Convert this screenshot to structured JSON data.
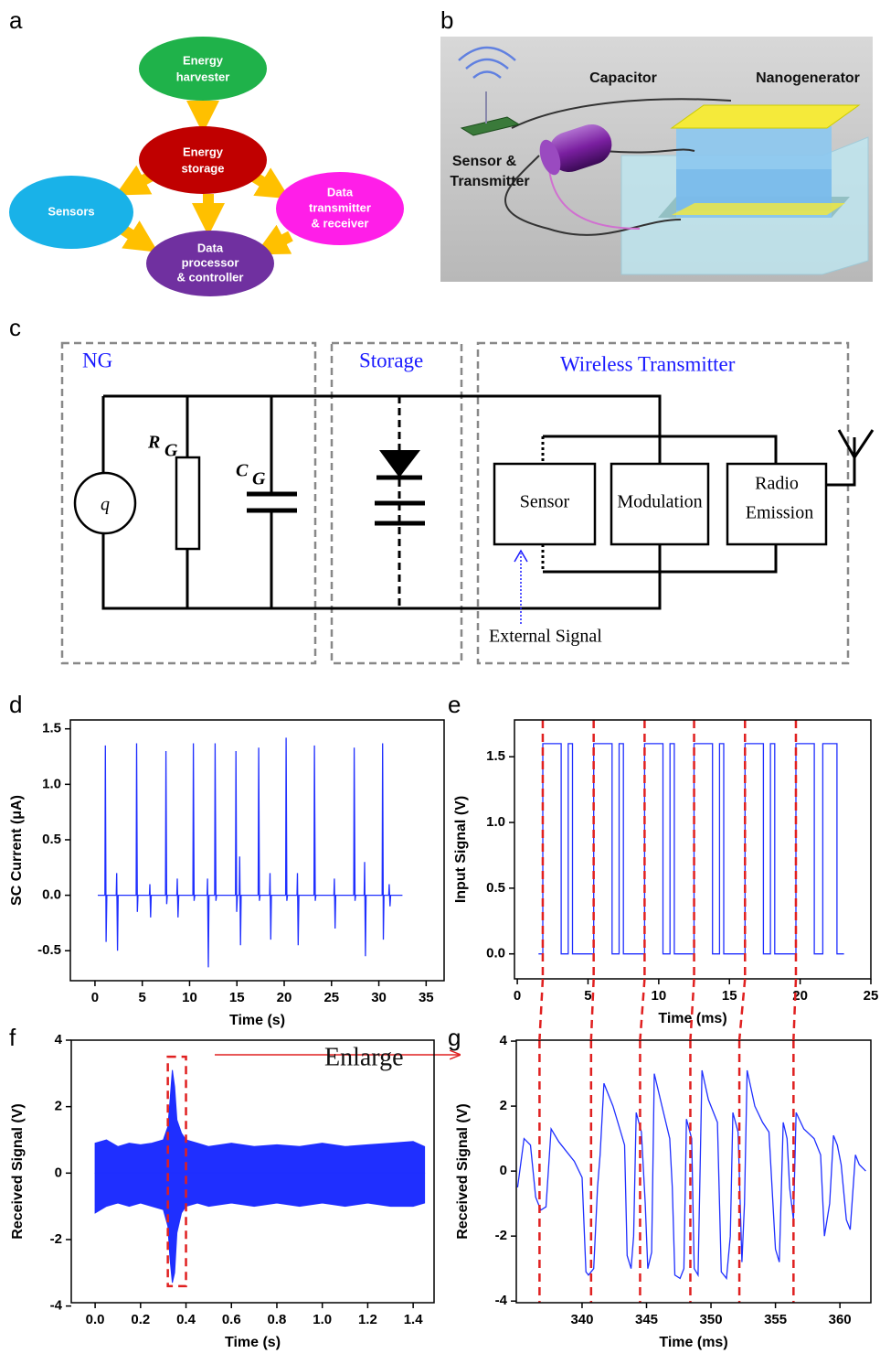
{
  "panels": [
    "a",
    "b",
    "c",
    "d",
    "e",
    "f",
    "g"
  ],
  "diagram": {
    "nodes": [
      {
        "label": [
          "Energy",
          "harvester"
        ]
      },
      {
        "label": [
          "Energy",
          "storage"
        ]
      },
      {
        "label": [
          "Sensors"
        ]
      },
      {
        "label": [
          "Data",
          "transmitter",
          "& receiver"
        ]
      },
      {
        "label": [
          "Data",
          "processor",
          "& controller"
        ]
      }
    ]
  },
  "illustration": {
    "labels": [
      "Capacitor",
      "Nanogenerator",
      "Sensor &",
      "Transmitter"
    ]
  },
  "circuit": {
    "blocks": [
      "NG",
      "Storage",
      "Wireless Transmitter"
    ],
    "source": "q",
    "resistor": {
      "symbol": "R",
      "subscript": "G"
    },
    "capacitor": {
      "symbol": "C",
      "subscript": "G"
    },
    "modules": [
      [
        "Sensor"
      ],
      [
        "Modulation"
      ],
      [
        "Radio",
        "Emission"
      ]
    ],
    "input": "External Signal"
  },
  "chart_data": [
    {
      "type": "line",
      "color": "#1f2fff",
      "x_label": "Time (s)",
      "y_label": "SC Current (μA)",
      "xlim": [
        -2.6,
        36.9
      ],
      "ylim": [
        -0.77,
        1.58
      ],
      "xticks": [
        0,
        5,
        10,
        15,
        20,
        25,
        30,
        35
      ],
      "yticks": [
        -0.5,
        {
          "value": 0,
          "label": "0.0"
        },
        0.5,
        {
          "value": 1,
          "label": "1.0"
        },
        1.5
      ],
      "x": [
        0.3,
        1.05,
        1.1,
        1.18,
        1.25,
        2.25,
        2.3,
        2.38,
        2.45,
        4.35,
        4.4,
        4.48,
        4.55,
        5.75,
        5.8,
        5.88,
        5.95,
        7.45,
        7.5,
        7.58,
        7.65,
        8.65,
        8.7,
        8.78,
        8.85,
        10.35,
        10.4,
        10.48,
        10.55,
        11.85,
        11.9,
        11.98,
        12.05,
        12.65,
        12.7,
        12.78,
        12.85,
        14.85,
        14.9,
        14.98,
        15.05,
        15.25,
        15.3,
        15.38,
        15.45,
        17.25,
        17.3,
        17.38,
        17.45,
        18.45,
        18.5,
        18.58,
        18.65,
        20.15,
        20.2,
        20.28,
        20.35,
        21.35,
        21.4,
        21.48,
        21.55,
        23.15,
        23.2,
        23.28,
        23.35,
        25.25,
        25.3,
        25.38,
        25.45,
        27.35,
        27.4,
        27.48,
        27.55,
        28.45,
        28.5,
        28.58,
        28.65,
        30.35,
        30.4,
        30.48,
        30.55,
        31.05,
        31.1,
        31.18,
        31.25,
        32.5
      ],
      "values": [
        0,
        0,
        1.35,
        -0.42,
        0,
        0,
        0.2,
        -0.5,
        0,
        0,
        1.37,
        -0.15,
        0,
        0,
        0.1,
        -0.2,
        0,
        0,
        1.3,
        -0.08,
        0,
        0,
        0.15,
        -0.2,
        0,
        0,
        1.37,
        -0.05,
        0,
        0,
        0.15,
        -0.65,
        0,
        0,
        1.37,
        -0.05,
        0,
        0,
        1.3,
        -0.15,
        0,
        0,
        0.35,
        -0.45,
        0,
        0,
        1.33,
        -0.05,
        0,
        0,
        0.2,
        -0.4,
        0,
        0,
        1.42,
        -0.05,
        0,
        0,
        0.2,
        -0.45,
        0,
        0,
        1.35,
        -0.05,
        0,
        0,
        0.15,
        -0.3,
        0,
        0,
        1.33,
        -0.05,
        0,
        0,
        0.3,
        -0.55,
        0,
        0,
        1.37,
        -0.4,
        0,
        0,
        0.1,
        -0.1,
        0,
        0
      ]
    },
    {
      "type": "line",
      "color": "#1f2fff",
      "x_label": "Time (ms)",
      "y_label": "Input Signal (V)",
      "xlim": [
        -0.2,
        25
      ],
      "ylim": [
        -0.19,
        1.78
      ],
      "xticks": [
        0,
        5,
        10,
        15,
        20,
        25
      ],
      "yticks": [
        {
          "value": 0,
          "label": "0.0"
        },
        0.5,
        {
          "value": 1,
          "label": "1.0"
        },
        1.5
      ],
      "markers": [
        1.8,
        5.4,
        9.0,
        12.5,
        16.1,
        19.7
      ],
      "x": [
        1.5,
        1.8,
        1.8,
        3.1,
        3.1,
        3.6,
        3.6,
        3.9,
        3.9,
        5.4,
        5.4,
        6.7,
        6.7,
        7.2,
        7.2,
        7.5,
        7.5,
        9.0,
        9.0,
        10.3,
        10.3,
        10.8,
        10.8,
        11.1,
        11.1,
        12.5,
        12.5,
        13.8,
        13.8,
        14.3,
        14.3,
        14.6,
        14.6,
        16.1,
        16.1,
        17.4,
        17.4,
        17.9,
        17.9,
        18.2,
        18.2,
        19.7,
        19.7,
        21.0,
        21.0,
        21.6,
        21.6,
        22.6,
        22.6,
        23.1
      ],
      "values": [
        0,
        0,
        1.6,
        1.6,
        0,
        0,
        1.6,
        1.6,
        0,
        0,
        1.6,
        1.6,
        0,
        0,
        1.6,
        1.6,
        0,
        0,
        1.6,
        1.6,
        0,
        0,
        1.6,
        1.6,
        0,
        0,
        1.6,
        1.6,
        0,
        0,
        1.6,
        1.6,
        0,
        0,
        1.6,
        1.6,
        0,
        0,
        1.6,
        1.6,
        0,
        0,
        1.6,
        1.6,
        0,
        0,
        1.6,
        1.6,
        0,
        0
      ]
    },
    {
      "type": "band",
      "color": "#1f2fff",
      "x_label": "Time (s)",
      "y_label": "Received Signal (V)",
      "xlim": [
        -0.105,
        1.492
      ],
      "ylim": [
        -3.9,
        4.0
      ],
      "xticks": [
        {
          "value": 0,
          "label": "0.0"
        },
        0.2,
        0.4,
        0.6,
        0.8,
        {
          "value": 1,
          "label": "1.0"
        },
        1.2,
        1.4
      ],
      "yticks": [
        -4,
        -2,
        0,
        2,
        4
      ],
      "annotation": "Enlarge",
      "highlight": {
        "x": [
          0.32,
          0.4
        ],
        "y": [
          -3.4,
          3.5
        ]
      },
      "x": [
        0.0,
        0.05,
        0.1,
        0.15,
        0.2,
        0.25,
        0.3,
        0.32,
        0.33,
        0.34,
        0.35,
        0.36,
        0.38,
        0.4,
        0.45,
        0.5,
        0.6,
        0.7,
        0.8,
        0.9,
        1.0,
        1.1,
        1.2,
        1.3,
        1.4,
        1.45
      ],
      "high": [
        0.9,
        1.0,
        0.8,
        0.9,
        0.85,
        0.9,
        1.0,
        1.4,
        2.2,
        3.1,
        2.6,
        1.6,
        1.2,
        1.0,
        0.9,
        0.8,
        0.9,
        0.8,
        0.85,
        0.8,
        0.9,
        0.8,
        0.85,
        0.9,
        0.95,
        0.8
      ],
      "low": [
        -1.2,
        -1.0,
        -0.9,
        -1.0,
        -0.9,
        -1.0,
        -1.1,
        -1.6,
        -2.6,
        -3.3,
        -3.0,
        -1.8,
        -1.2,
        -1.0,
        -0.9,
        -1.0,
        -0.9,
        -1.0,
        -0.9,
        -1.0,
        -0.9,
        -1.0,
        -0.9,
        -1.0,
        -1.0,
        -0.9
      ]
    },
    {
      "type": "line",
      "color": "#1f2fff",
      "x_label": "Time (ms)",
      "y_label": "Received Signal (V)",
      "xlim": [
        334.9,
        362.4
      ],
      "ylim": [
        -4.05,
        4.03
      ],
      "xticks": [
        340,
        345,
        350,
        355,
        360
      ],
      "yticks": [
        -4,
        -2,
        0,
        2,
        4
      ],
      "markers": [
        336.7,
        340.7,
        344.5,
        348.4,
        352.2,
        356.4
      ],
      "x": [
        335.0,
        335.5,
        336.0,
        336.4,
        336.8,
        337.2,
        337.6,
        338.2,
        338.8,
        339.4,
        340.0,
        340.3,
        340.5,
        340.9,
        341.2,
        341.4,
        341.7,
        342.4,
        343.0,
        343.3,
        343.5,
        343.8,
        344.0,
        344.2,
        344.6,
        344.9,
        345.1,
        345.4,
        345.6,
        346.2,
        346.8,
        347.0,
        347.2,
        347.6,
        347.9,
        348.1,
        348.5,
        348.7,
        349.0,
        349.3,
        349.8,
        350.5,
        350.8,
        351.2,
        351.5,
        351.7,
        352.1,
        352.4,
        352.6,
        352.8,
        353.4,
        354.0,
        354.5,
        355.0,
        355.3,
        355.6,
        355.9,
        356.1,
        356.4,
        356.6,
        357.2,
        358.0,
        358.5,
        358.8,
        359.2,
        359.5,
        359.8,
        360.1,
        360.5,
        360.8,
        361.2,
        361.5,
        362.0
      ],
      "values": [
        -0.5,
        1.0,
        0.8,
        -0.8,
        -1.2,
        -1.1,
        1.3,
        0.9,
        0.6,
        0.3,
        -0.2,
        -3.1,
        -3.2,
        -3.0,
        -0.5,
        0.5,
        2.7,
        2.0,
        1.2,
        0.8,
        -2.6,
        -3.0,
        -2.0,
        1.8,
        1.2,
        -1.0,
        -3.0,
        -2.5,
        3.0,
        2.0,
        1.0,
        -0.5,
        -3.2,
        -3.3,
        -3.0,
        1.6,
        1.0,
        -3.0,
        -3.2,
        3.1,
        2.2,
        1.5,
        -3.1,
        -3.3,
        -2.0,
        1.8,
        1.2,
        -2.8,
        -1.0,
        3.1,
        2.0,
        1.5,
        1.2,
        -2.4,
        -2.8,
        1.5,
        1.0,
        -0.5,
        -1.5,
        1.8,
        1.3,
        1.0,
        0.5,
        -2.0,
        -1.0,
        1.1,
        0.8,
        0.2,
        -1.5,
        -1.8,
        0.5,
        0.2,
        0.0
      ]
    }
  ]
}
